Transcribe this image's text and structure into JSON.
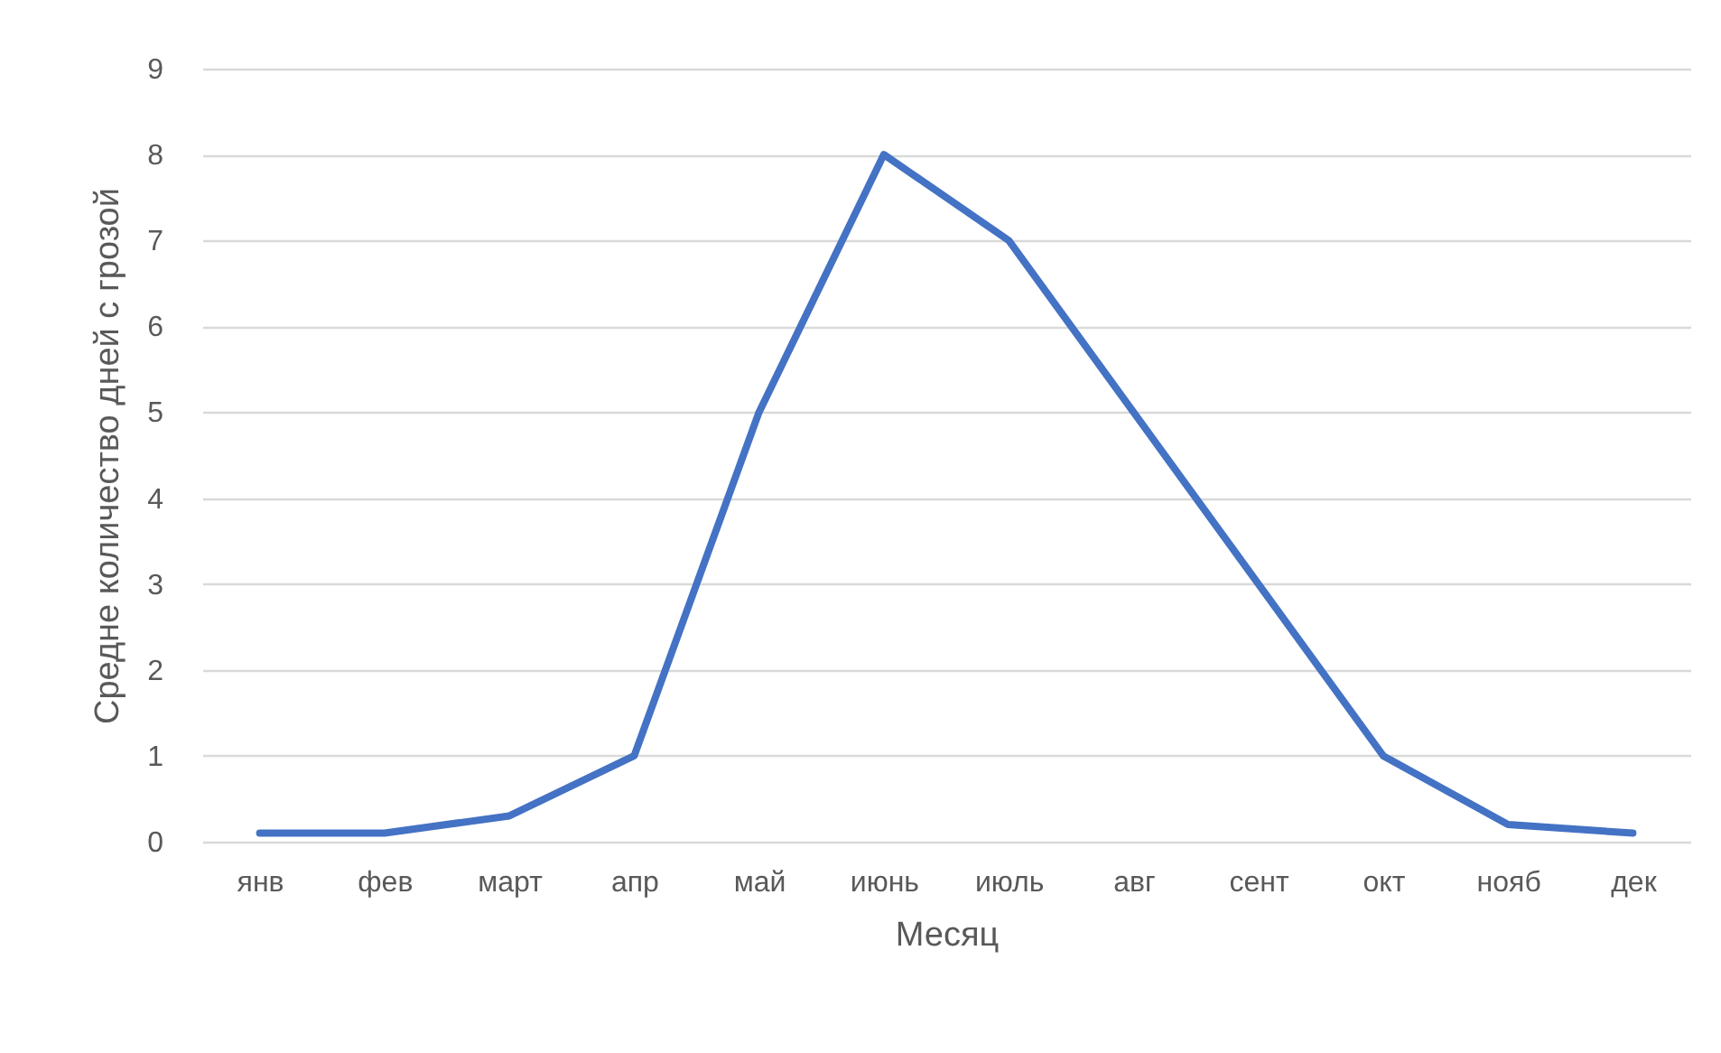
{
  "chart_data": {
    "type": "line",
    "xlabel": "Месяц",
    "ylabel": "Средне количество дней с грозой",
    "categories": [
      "янв",
      "фев",
      "март",
      "апр",
      "май",
      "июнь",
      "июль",
      "авг",
      "сент",
      "окт",
      "нояб",
      "дек"
    ],
    "series": [
      {
        "color": "#4472c4",
        "values": [
          0.1,
          0.1,
          0.3,
          1,
          5,
          8,
          7,
          5,
          3,
          1,
          0.2,
          0.1
        ]
      }
    ],
    "ylim": [
      0,
      9
    ],
    "yticks": [
      0,
      1,
      2,
      3,
      4,
      5,
      6,
      7,
      8,
      9
    ],
    "grid": "y",
    "marker": "none",
    "line_style": "solid"
  }
}
